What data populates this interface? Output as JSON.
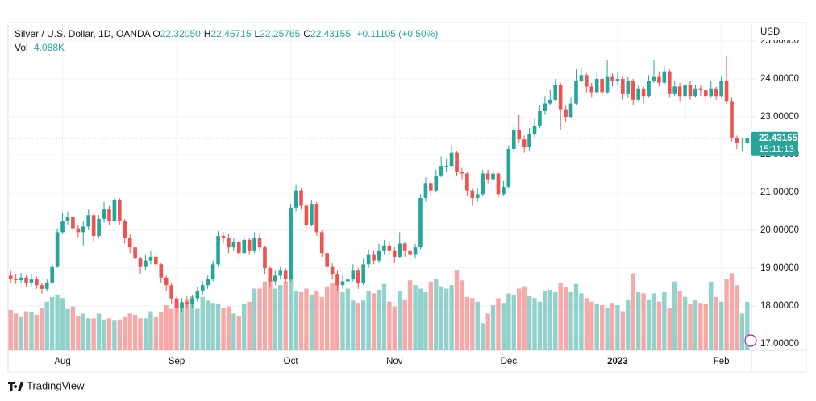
{
  "chart_data": {
    "type": "candlestick",
    "title": "Silver / U.S. Dollar, 1D, OANDA",
    "ohlc_header": [
      {
        "label": "O",
        "value": "22.32050"
      },
      {
        "label": "H",
        "value": "22.45715"
      },
      {
        "label": "L",
        "value": "22.25765"
      },
      {
        "label": "C",
        "value": "22.43155"
      }
    ],
    "change": "+0.11105 (+0.50%)",
    "volume_title": "Vol",
    "volume_value": "4.088K",
    "currency": "USD",
    "last_price_label": "22.43155",
    "countdown": "15:11:13",
    "brand": "TradingView",
    "up_color": "#26a69a",
    "down_color": "#ef5350",
    "grid": true,
    "ylim": [
      16.83,
      25.49
    ],
    "yticks": [
      {
        "value": 17,
        "label": "17.00000"
      },
      {
        "value": 18,
        "label": "18.00000"
      },
      {
        "value": 19,
        "label": "19.00000"
      },
      {
        "value": 20,
        "label": "20.00000"
      },
      {
        "value": 21,
        "label": "21.00000"
      },
      {
        "value": 22,
        "label": "22.00000"
      },
      {
        "value": 23,
        "label": "23.00000"
      },
      {
        "value": 24,
        "label": "24.00000"
      },
      {
        "value": 25,
        "label": "25.00000"
      }
    ],
    "xticks": [
      {
        "value": 10,
        "label": "Aug"
      },
      {
        "value": 32,
        "label": "Sep"
      },
      {
        "value": 54,
        "label": "Oct"
      },
      {
        "value": 74,
        "label": "Nov"
      },
      {
        "value": 96,
        "label": "Dec"
      },
      {
        "value": 117,
        "label": "2023"
      },
      {
        "value": 137,
        "label": "Feb"
      }
    ],
    "open": [
      18.8,
      18.72,
      18.68,
      18.75,
      18.62,
      18.7,
      18.55,
      18.45,
      18.62,
      19.05,
      19.95,
      20.25,
      20.35,
      20.05,
      19.95,
      20.1,
      20.4,
      19.85,
      20.3,
      20.55,
      20.25,
      20.8,
      20.25,
      19.8,
      19.55,
      19.25,
      19.05,
      19.2,
      19.3,
      19.1,
      18.75,
      18.55,
      18.2,
      17.95,
      18.1,
      18.05,
      18.2,
      18.4,
      18.55,
      18.7,
      19.1,
      19.85,
      19.8,
      19.55,
      19.7,
      19.4,
      19.75,
      19.45,
      19.8,
      19.55,
      19.0,
      18.65,
      18.8,
      18.95,
      18.7,
      20.6,
      21.05,
      20.65,
      20.15,
      20.7,
      19.95,
      19.4,
      19.05,
      18.85,
      18.55,
      18.65,
      18.7,
      18.95,
      18.6,
      19.1,
      19.35,
      19.2,
      19.45,
      19.6,
      19.45,
      19.3,
      19.65,
      19.45,
      19.35,
      19.55,
      20.85,
      21.25,
      21.05,
      21.45,
      21.7,
      21.7,
      22.05,
      21.55,
      21.5,
      21.05,
      20.85,
      20.95,
      21.5,
      21.35,
      21.5,
      20.95,
      21.15,
      22.15,
      22.65,
      22.4,
      22.2,
      22.55,
      22.75,
      23.15,
      23.35,
      23.45,
      23.85,
      23.2,
      23.0,
      23.35,
      23.95,
      24.1,
      23.8,
      23.65,
      24.0,
      23.65,
      24.05,
      23.95,
      24.0,
      23.6,
      23.95,
      23.45,
      23.75,
      23.55,
      23.95,
      24.05,
      23.9,
      24.2,
      23.6,
      23.8,
      23.55,
      23.85,
      23.55,
      23.75,
      23.7,
      23.55,
      23.75,
      23.55,
      23.95,
      23.4,
      22.45,
      22.3,
      22.3205
    ],
    "high": [
      18.95,
      18.85,
      18.88,
      18.82,
      18.85,
      18.78,
      18.62,
      18.7,
      19.12,
      20.05,
      20.45,
      20.5,
      20.4,
      20.15,
      20.25,
      20.55,
      20.45,
      20.4,
      20.75,
      20.65,
      20.85,
      20.85,
      20.3,
      19.9,
      19.6,
      19.3,
      19.35,
      19.45,
      19.4,
      19.15,
      18.8,
      18.6,
      18.25,
      18.2,
      18.25,
      18.3,
      18.5,
      18.65,
      18.8,
      19.2,
      19.98,
      19.95,
      19.9,
      19.8,
      19.75,
      19.85,
      19.8,
      19.95,
      19.9,
      19.6,
      19.05,
      18.95,
      19.05,
      19.0,
      20.7,
      21.2,
      21.1,
      20.7,
      20.8,
      20.75,
      20.0,
      19.45,
      19.15,
      18.95,
      18.8,
      18.85,
      19.1,
      19.0,
      19.25,
      19.5,
      19.45,
      19.65,
      19.75,
      19.7,
      19.55,
      19.95,
      19.7,
      19.55,
      19.65,
      20.95,
      21.4,
      21.35,
      21.6,
      21.95,
      21.9,
      22.25,
      22.1,
      21.65,
      21.55,
      21.1,
      21.1,
      21.6,
      21.6,
      21.65,
      21.55,
      21.3,
      22.25,
      22.8,
      23.05,
      22.5,
      22.7,
      22.95,
      23.3,
      23.55,
      23.7,
      24.0,
      23.9,
      23.3,
      23.5,
      24.25,
      24.3,
      24.15,
      23.9,
      24.2,
      24.1,
      24.5,
      24.15,
      24.2,
      24.05,
      24.05,
      24.0,
      23.85,
      23.8,
      24.1,
      24.5,
      24.2,
      24.35,
      24.25,
      23.95,
      23.9,
      24.0,
      23.95,
      23.85,
      23.85,
      23.75,
      23.95,
      23.8,
      24.05,
      24.62,
      23.5,
      22.5,
      22.45,
      22.45715
    ],
    "low": [
      18.62,
      18.58,
      18.6,
      18.5,
      18.52,
      18.45,
      18.32,
      18.38,
      18.55,
      19.0,
      19.9,
      20.15,
      19.95,
      19.82,
      19.6,
      20.0,
      19.7,
      19.8,
      20.2,
      20.15,
      20.2,
      20.15,
      19.65,
      19.4,
      19.1,
      18.85,
      18.95,
      19.1,
      18.95,
      18.6,
      18.4,
      18.05,
      17.8,
      17.85,
      17.95,
      17.95,
      18.1,
      18.3,
      18.45,
      18.65,
      19.05,
      19.65,
      19.4,
      19.45,
      19.25,
      19.35,
      19.35,
      19.4,
      19.45,
      18.85,
      18.5,
      18.55,
      18.7,
      18.6,
      18.65,
      20.5,
      20.55,
      20.05,
      20.1,
      19.85,
      19.3,
      18.9,
      18.7,
      18.4,
      18.45,
      18.55,
      18.65,
      18.45,
      18.55,
      19.0,
      19.1,
      19.15,
      19.35,
      19.35,
      19.15,
      19.25,
      19.3,
      19.2,
      19.25,
      19.5,
      20.75,
      20.9,
      21.0,
      21.4,
      21.55,
      21.65,
      21.45,
      21.35,
      20.9,
      20.65,
      20.75,
      20.9,
      21.25,
      21.3,
      20.85,
      20.9,
      21.1,
      22.05,
      22.3,
      22.05,
      22.1,
      22.45,
      22.7,
      23.05,
      23.3,
      23.4,
      22.65,
      22.85,
      22.95,
      23.3,
      23.9,
      23.65,
      23.5,
      23.6,
      23.55,
      23.6,
      23.8,
      23.85,
      23.45,
      23.5,
      23.3,
      23.4,
      23.35,
      23.5,
      23.9,
      23.8,
      23.85,
      23.5,
      23.55,
      23.4,
      22.8,
      23.45,
      23.5,
      23.55,
      23.3,
      23.5,
      23.45,
      23.5,
      23.35,
      22.35,
      22.15,
      22.1,
      22.25765
    ],
    "close": [
      18.72,
      18.68,
      18.75,
      18.62,
      18.7,
      18.55,
      18.45,
      18.62,
      19.05,
      19.95,
      20.25,
      20.35,
      20.05,
      19.95,
      20.1,
      20.4,
      19.85,
      20.3,
      20.55,
      20.25,
      20.8,
      20.25,
      19.8,
      19.55,
      19.25,
      19.05,
      19.2,
      19.3,
      19.1,
      18.75,
      18.55,
      18.2,
      17.95,
      18.1,
      18.05,
      18.2,
      18.4,
      18.55,
      18.7,
      19.1,
      19.85,
      19.8,
      19.55,
      19.7,
      19.4,
      19.75,
      19.45,
      19.8,
      19.55,
      19.0,
      18.65,
      18.8,
      18.95,
      18.7,
      20.6,
      21.05,
      20.65,
      20.15,
      20.7,
      19.95,
      19.4,
      19.05,
      18.85,
      18.55,
      18.65,
      18.7,
      18.95,
      18.6,
      19.1,
      19.35,
      19.2,
      19.45,
      19.6,
      19.45,
      19.3,
      19.65,
      19.45,
      19.35,
      19.55,
      20.85,
      21.25,
      21.05,
      21.45,
      21.7,
      21.7,
      22.05,
      21.55,
      21.5,
      21.05,
      20.85,
      20.95,
      21.5,
      21.35,
      21.5,
      20.95,
      21.15,
      22.15,
      22.65,
      22.4,
      22.2,
      22.55,
      22.75,
      23.15,
      23.35,
      23.45,
      23.85,
      23.2,
      23.0,
      23.35,
      23.95,
      24.1,
      23.8,
      23.65,
      24.0,
      23.65,
      24.05,
      23.95,
      24.0,
      23.6,
      23.95,
      23.45,
      23.75,
      23.55,
      23.95,
      24.05,
      23.9,
      24.2,
      23.6,
      23.8,
      23.55,
      23.85,
      23.55,
      23.75,
      23.7,
      23.55,
      23.75,
      23.55,
      23.95,
      23.4,
      22.45,
      22.3,
      22.3205,
      22.43155
    ],
    "volume": [
      3400,
      3100,
      2800,
      3300,
      3200,
      3000,
      3600,
      4100,
      4500,
      4700,
      4400,
      3500,
      3700,
      2900,
      3100,
      2700,
      2700,
      3100,
      2600,
      2700,
      2500,
      2600,
      2800,
      3100,
      3000,
      2700,
      2700,
      3300,
      2800,
      3200,
      3800,
      3500,
      4100,
      3900,
      4300,
      4600,
      3500,
      4500,
      4200,
      4000,
      3900,
      3600,
      3700,
      3100,
      2900,
      3900,
      4100,
      5200,
      5200,
      5800,
      6000,
      5200,
      5500,
      5800,
      6400,
      5000,
      4900,
      5200,
      4700,
      5000,
      4500,
      5400,
      5700,
      5800,
      4900,
      5200,
      4200,
      4000,
      4200,
      5000,
      4800,
      5100,
      5600,
      4100,
      3700,
      5000,
      4300,
      5900,
      5500,
      5200,
      4900,
      5800,
      6000,
      5400,
      5200,
      5500,
      6800,
      5900,
      4500,
      4400,
      4100,
      2300,
      3100,
      3800,
      4400,
      4000,
      4800,
      4700,
      5200,
      5400,
      4600,
      4400,
      4100,
      5000,
      5100,
      4900,
      5700,
      5300,
      4900,
      5600,
      4800,
      4400,
      4100,
      3900,
      3800,
      3600,
      4000,
      3800,
      3300,
      4300,
      6500,
      4900,
      4800,
      4300,
      4800,
      4100,
      4900,
      3600,
      5800,
      5000,
      4500,
      3900,
      4200,
      4000,
      3900,
      5800,
      4500,
      4100,
      6000,
      6500,
      5500,
      3100,
      4088
    ]
  }
}
